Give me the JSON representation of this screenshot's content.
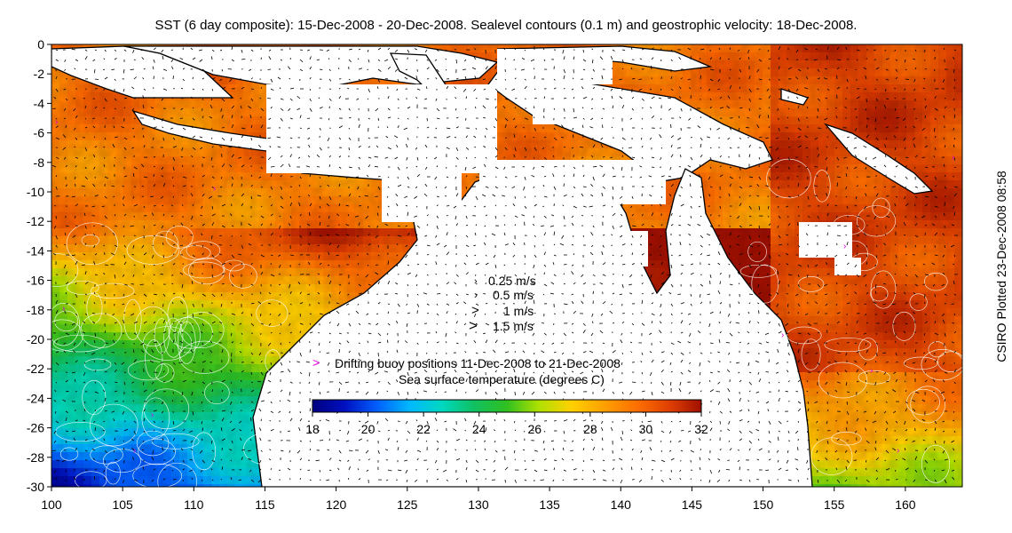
{
  "title": "SST (6 day composite): 15-Dec-2008 - 20-Dec-2008. Sealevel contours (0.1 m) and geostrophic velocity: 18-Dec-2008.",
  "side_credit": "CSIRO Plotted 23-Dec-2008 08:58",
  "axes": {
    "x_ticks": [
      "100",
      "105",
      "110",
      "115",
      "120",
      "125",
      "130",
      "135",
      "140",
      "145",
      "150",
      "155",
      "160"
    ],
    "y_ticks": [
      "0",
      "-2",
      "-4",
      "-6",
      "-8",
      "-10",
      "-12",
      "-14",
      "-16",
      "-18",
      "-20",
      "-22",
      "-24",
      "-26",
      "-28",
      "-30"
    ],
    "lon_range": [
      100,
      164
    ],
    "lat_range": [
      -30,
      0
    ]
  },
  "velocity_legend": [
    {
      "label": "0.25 m/s"
    },
    {
      "label": "0.5 m/s"
    },
    {
      "label": "1 m/s"
    },
    {
      "label": "1.5 m/s"
    }
  ],
  "buoy_legend": {
    "marker": ">",
    "label": "Drifting buoy positions 11-Dec-2008 to 21-Dec-2008"
  },
  "colorbar": {
    "title": "Sea surface temperature (degrees C)",
    "ticks": [
      "18",
      "20",
      "22",
      "24",
      "26",
      "28",
      "30",
      "32"
    ],
    "range": [
      18,
      32
    ]
  },
  "colors": {
    "land": "#ffffff",
    "coast": "#000000",
    "buoy": "#e000e0",
    "stops": [
      "#00007f",
      "#0010c0",
      "#0060ff",
      "#00b8ff",
      "#00d8c0",
      "#10c060",
      "#30c020",
      "#b0e000",
      "#ffd000",
      "#ffa000",
      "#ff7000",
      "#e04000",
      "#a01000"
    ]
  }
}
